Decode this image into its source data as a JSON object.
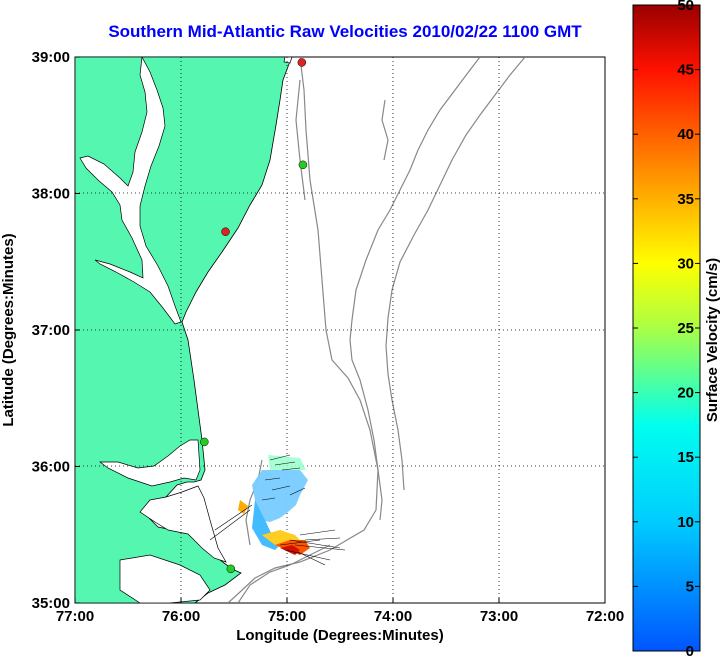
{
  "title": "Southern Mid-Atlantic Raw Velocities 2010/02/22 1100 GMT",
  "colors": {
    "land": "#55f7b0",
    "coast": "#000000",
    "bathymetry": "#888888",
    "title": "#0000ff",
    "station_green": "#22cc22",
    "station_red": "#dd2222"
  },
  "chart_data": {
    "type": "map",
    "xlabel": "Longitude (Degrees:Minutes)",
    "ylabel": "Latitude (Degrees:Minutes)",
    "x_ticks": [
      "77:00",
      "76:00",
      "75:00",
      "74:00",
      "73:00",
      "72:00"
    ],
    "y_ticks": [
      "39:00",
      "38:00",
      "37:00",
      "36:00",
      "35:00"
    ],
    "xlim": [
      -77,
      -72
    ],
    "ylim": [
      35,
      39
    ],
    "grid": true,
    "colorbar": {
      "label": "Surface Velocity (cm/s)",
      "ticks": [
        "0",
        "5",
        "10",
        "15",
        "20",
        "25",
        "30",
        "35",
        "40",
        "45",
        "50"
      ],
      "range": [
        0,
        50
      ]
    },
    "stations": [
      {
        "lon": -74.86,
        "lat": 38.96,
        "status": "red"
      },
      {
        "lon": -74.85,
        "lat": 38.21,
        "status": "green"
      },
      {
        "lon": -75.58,
        "lat": 37.72,
        "status": "red"
      },
      {
        "lon": -75.78,
        "lat": 36.18,
        "status": "green"
      },
      {
        "lon": -75.53,
        "lat": 35.25,
        "status": "green"
      }
    ]
  }
}
